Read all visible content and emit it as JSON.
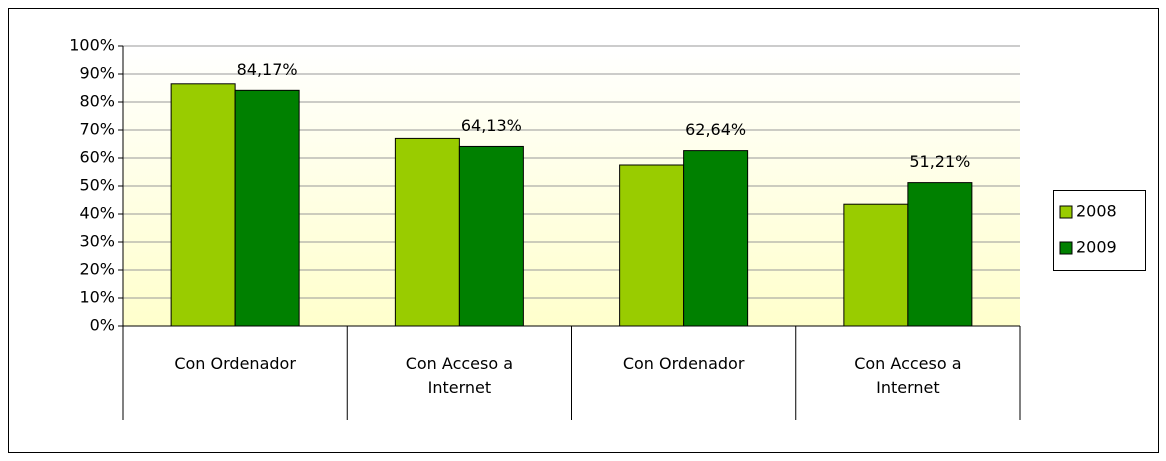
{
  "chart_data": {
    "type": "bar",
    "categories": [
      "Con Ordenador",
      "Con Acceso a Internet",
      "Con Ordenador",
      "Con Acceso a Internet"
    ],
    "series": [
      {
        "name": "2008",
        "color": "#99cc00",
        "values": [
          86.5,
          67,
          57.5,
          43.5
        ]
      },
      {
        "name": "2009",
        "color": "#008000",
        "values": [
          84.17,
          64.13,
          62.64,
          51.21
        ],
        "value_labels": [
          "84,17%",
          "64,13%",
          "62,64%",
          "51,21%"
        ]
      }
    ],
    "ylim": [
      0,
      100
    ],
    "yticks": [
      {
        "value": 0,
        "label": "0%"
      },
      {
        "value": 10,
        "label": "10%"
      },
      {
        "value": 20,
        "label": "20%"
      },
      {
        "value": 30,
        "label": "30%"
      },
      {
        "value": 40,
        "label": "40%"
      },
      {
        "value": 50,
        "label": "50%"
      },
      {
        "value": 60,
        "label": "60%"
      },
      {
        "value": 70,
        "label": "70%"
      },
      {
        "value": 80,
        "label": "80%"
      },
      {
        "value": 90,
        "label": "90%"
      },
      {
        "value": 100,
        "label": "100%"
      }
    ],
    "grid": true,
    "legend": "right"
  }
}
